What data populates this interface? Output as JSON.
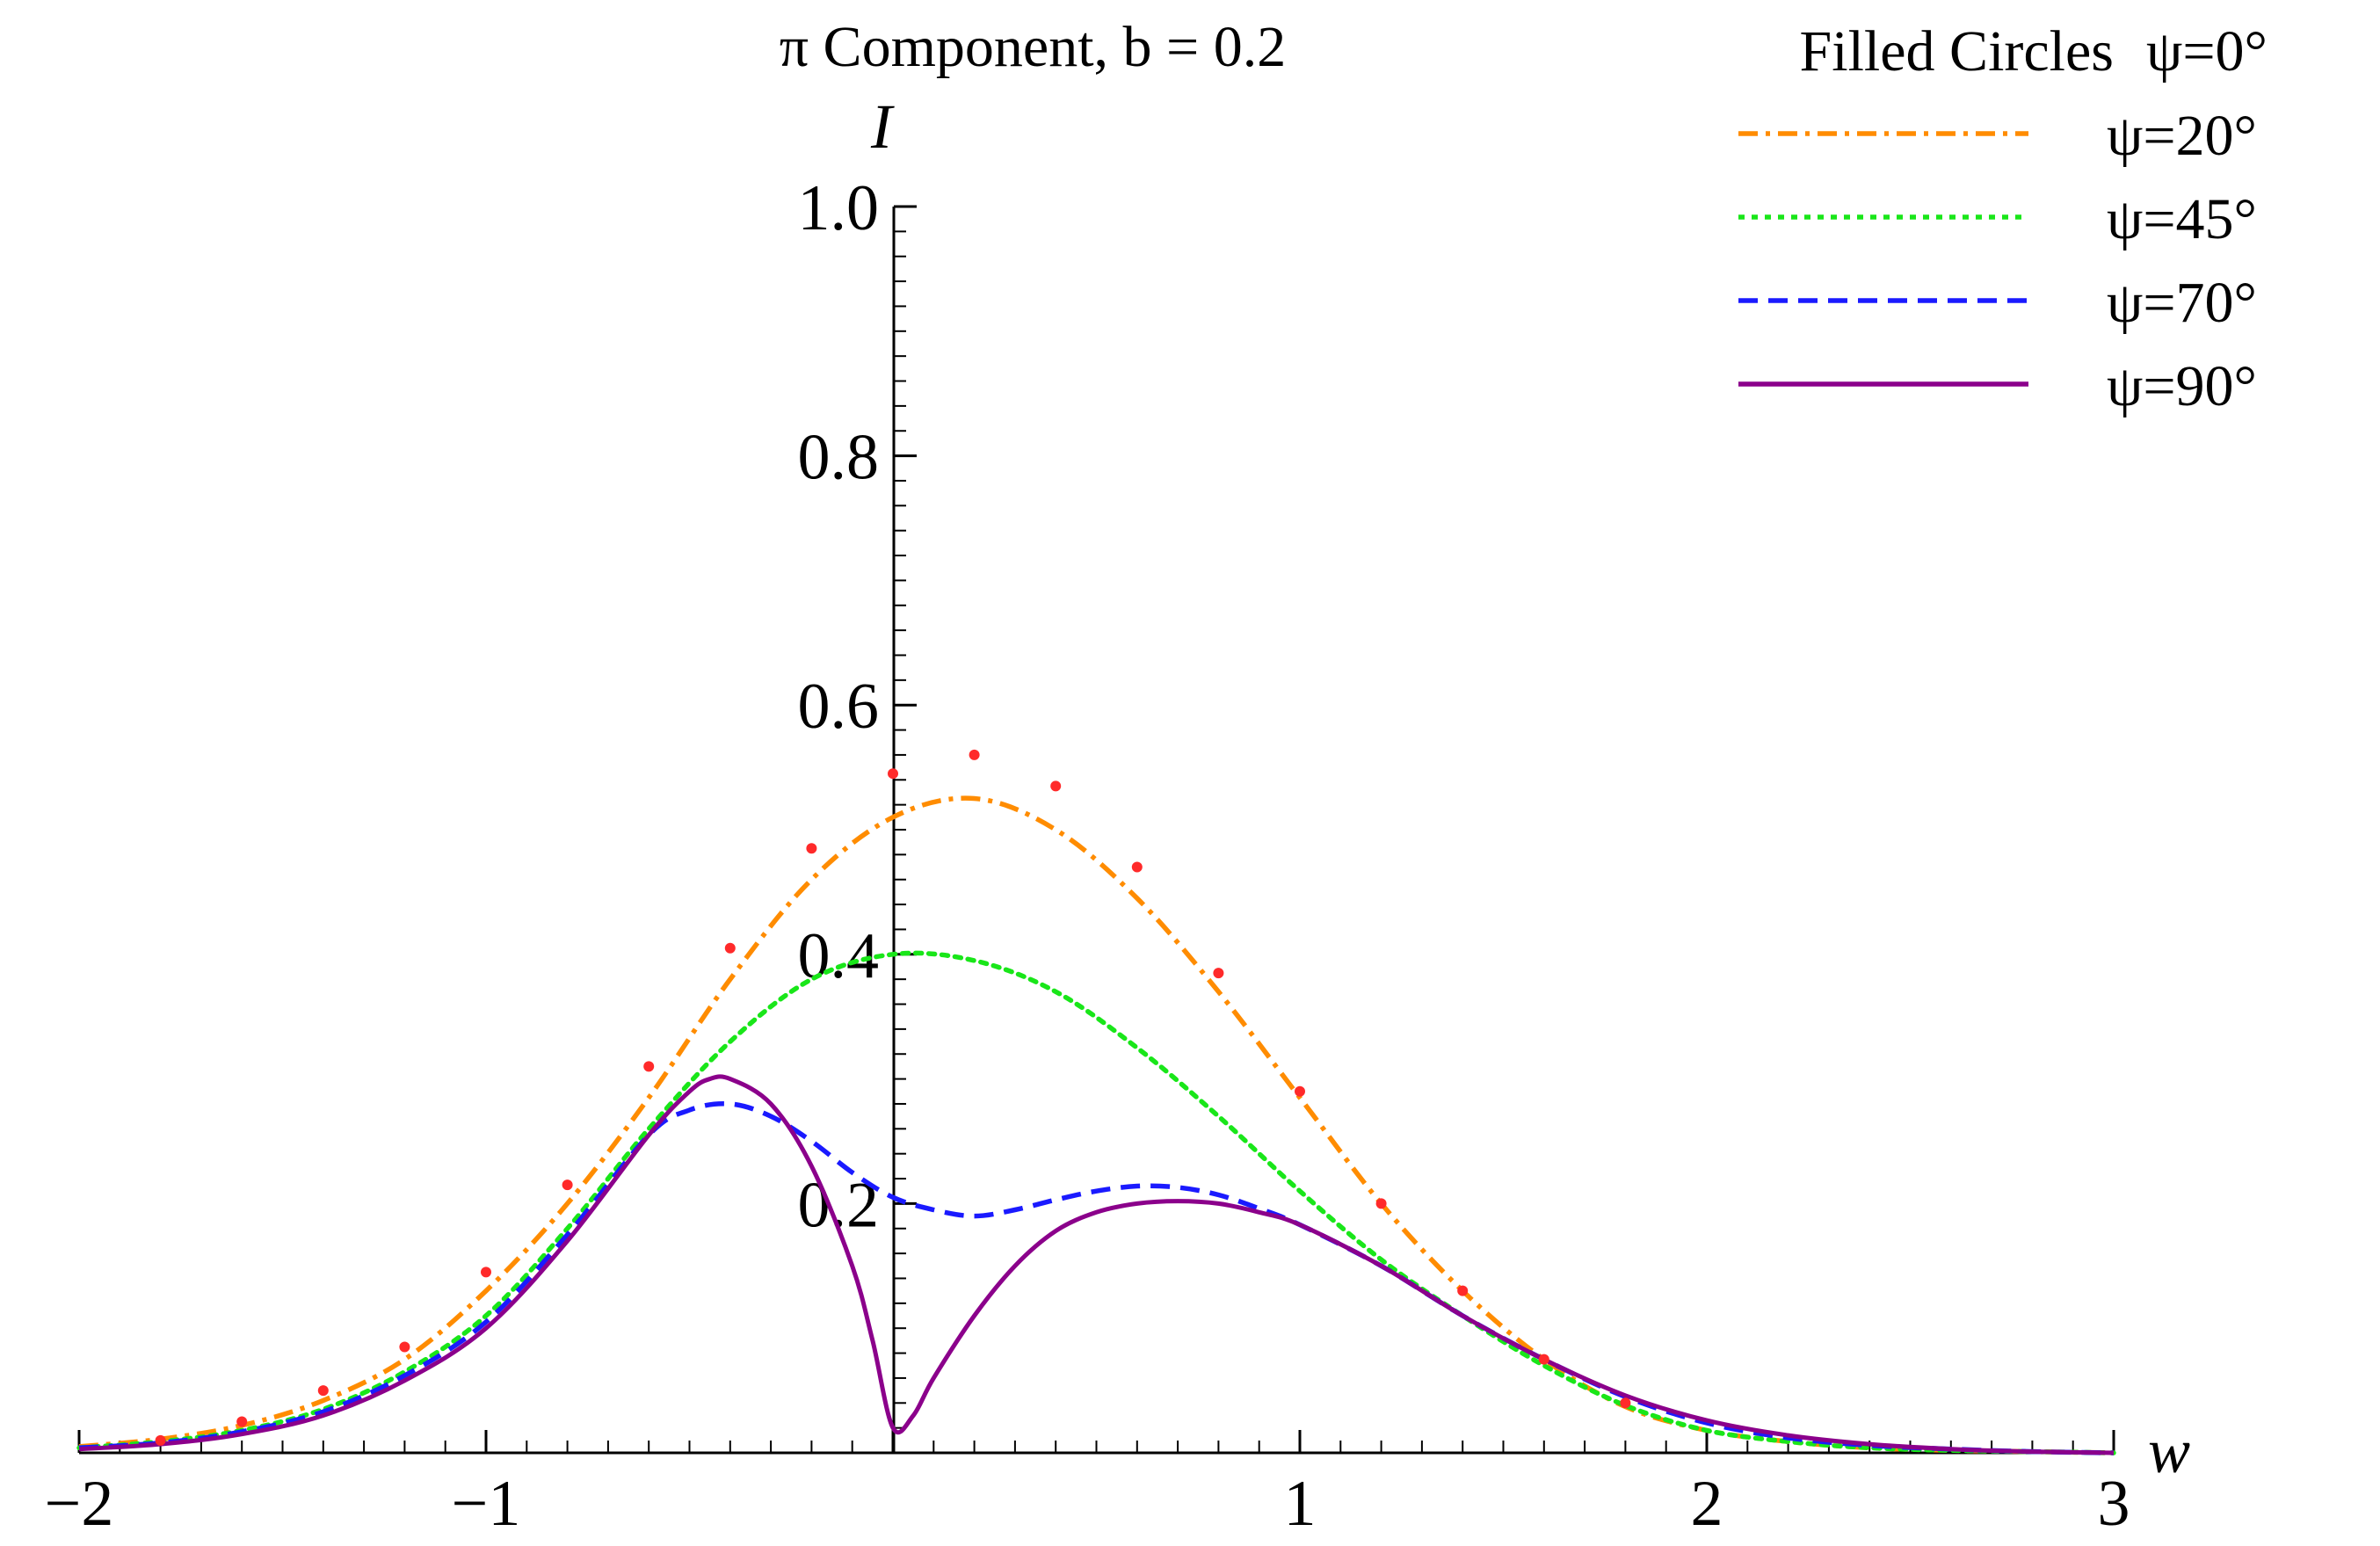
{
  "chart_data": {
    "type": "line",
    "title": "π Component, b = 0.2",
    "xlabel": "w",
    "ylabel": "I",
    "xlim": [
      -2,
      3
    ],
    "ylim": [
      0,
      1.0
    ],
    "grid": false,
    "legend_placement": "top-right",
    "x_ticks": [
      {
        "value": -2,
        "label": "−2"
      },
      {
        "value": -1,
        "label": "−1"
      },
      {
        "value": 1,
        "label": "1"
      },
      {
        "value": 2,
        "label": "2"
      },
      {
        "value": 3,
        "label": "3"
      }
    ],
    "y_ticks": [
      {
        "value": 0.2,
        "label": "0.2"
      },
      {
        "value": 0.4,
        "label": "0.4"
      },
      {
        "value": 0.6,
        "label": "0.6"
      },
      {
        "value": 0.8,
        "label": "0.8"
      },
      {
        "value": 1.0,
        "label": "1.0"
      }
    ],
    "scatter_series": {
      "name": "ψ=0°",
      "legend_text": "Filled Circles",
      "color": "#ff2a2a",
      "x": [
        -1.8,
        -1.6,
        -1.4,
        -1.2,
        -1.0,
        -0.8,
        -0.6,
        -0.4,
        -0.2,
        0.0,
        0.2,
        0.4,
        0.6,
        0.8,
        1.0,
        1.2,
        1.4,
        1.6,
        1.8
      ],
      "y": [
        0.01,
        0.025,
        0.05,
        0.085,
        0.145,
        0.215,
        0.31,
        0.405,
        0.485,
        0.545,
        0.56,
        0.535,
        0.47,
        0.385,
        0.29,
        0.2,
        0.13,
        0.075,
        0.04
      ]
    },
    "series": [
      {
        "name": "ψ=20°",
        "color": "#ff8c00",
        "dash": "dashdot",
        "x": [
          -2.0,
          -1.8,
          -1.6,
          -1.4,
          -1.2,
          -1.0,
          -0.8,
          -0.6,
          -0.4,
          -0.2,
          0.0,
          0.2,
          0.4,
          0.6,
          0.8,
          1.0,
          1.2,
          1.4,
          1.6,
          1.8,
          2.0,
          2.2,
          2.4,
          2.6,
          2.8,
          3.0
        ],
        "y": [
          0.005,
          0.011,
          0.022,
          0.042,
          0.075,
          0.13,
          0.2,
          0.285,
          0.38,
          0.46,
          0.51,
          0.525,
          0.5,
          0.445,
          0.37,
          0.285,
          0.2,
          0.13,
          0.075,
          0.037,
          0.018,
          0.009,
          0.004,
          0.002,
          0.001,
          0.0
        ]
      },
      {
        "name": "ψ=45°",
        "color": "#19e619",
        "dash": "dotted",
        "x": [
          -2.0,
          -1.8,
          -1.6,
          -1.4,
          -1.2,
          -1.0,
          -0.8,
          -0.6,
          -0.4,
          -0.2,
          0.0,
          0.2,
          0.4,
          0.6,
          0.8,
          1.0,
          1.2,
          1.4,
          1.6,
          1.8,
          2.0,
          2.2,
          2.4,
          2.6,
          2.8,
          3.0
        ],
        "y": [
          0.004,
          0.009,
          0.018,
          0.035,
          0.065,
          0.11,
          0.18,
          0.26,
          0.33,
          0.38,
          0.4,
          0.395,
          0.37,
          0.325,
          0.27,
          0.21,
          0.155,
          0.11,
          0.07,
          0.038,
          0.018,
          0.009,
          0.004,
          0.002,
          0.001,
          0.0
        ]
      },
      {
        "name": "ψ=70°",
        "color": "#1a1aff",
        "dash": "dashed",
        "x": [
          -2.0,
          -1.8,
          -1.6,
          -1.4,
          -1.2,
          -1.0,
          -0.8,
          -0.6,
          -0.5,
          -0.4,
          -0.3,
          -0.2,
          -0.1,
          0.0,
          0.1,
          0.2,
          0.3,
          0.4,
          0.5,
          0.6,
          0.7,
          0.8,
          0.9,
          1.0,
          1.2,
          1.4,
          1.6,
          1.8,
          2.0,
          2.2,
          2.4,
          2.6,
          2.8,
          3.0
        ],
        "y": [
          0.004,
          0.008,
          0.017,
          0.033,
          0.062,
          0.105,
          0.175,
          0.255,
          0.275,
          0.28,
          0.27,
          0.25,
          0.225,
          0.205,
          0.195,
          0.19,
          0.195,
          0.203,
          0.21,
          0.214,
          0.213,
          0.207,
          0.196,
          0.183,
          0.15,
          0.11,
          0.075,
          0.045,
          0.024,
          0.012,
          0.006,
          0.003,
          0.001,
          0.0
        ]
      },
      {
        "name": "ψ=90°",
        "color": "#8b008b",
        "dash": "solid",
        "x": [
          -2.0,
          -1.8,
          -1.6,
          -1.4,
          -1.2,
          -1.0,
          -0.8,
          -0.6,
          -0.5,
          -0.45,
          -0.4,
          -0.3,
          -0.2,
          -0.1,
          -0.05,
          0.0,
          0.05,
          0.1,
          0.2,
          0.3,
          0.4,
          0.5,
          0.6,
          0.7,
          0.8,
          0.9,
          1.0,
          1.2,
          1.4,
          1.6,
          1.8,
          2.0,
          2.2,
          2.4,
          2.6,
          2.8,
          3.0
        ],
        "y": [
          0.003,
          0.007,
          0.015,
          0.03,
          0.058,
          0.1,
          0.17,
          0.255,
          0.29,
          0.3,
          0.3,
          0.28,
          0.23,
          0.15,
          0.09,
          0.02,
          0.03,
          0.06,
          0.11,
          0.15,
          0.178,
          0.193,
          0.2,
          0.202,
          0.2,
          0.193,
          0.183,
          0.15,
          0.11,
          0.075,
          0.046,
          0.026,
          0.014,
          0.007,
          0.003,
          0.001,
          0.0
        ]
      }
    ]
  }
}
